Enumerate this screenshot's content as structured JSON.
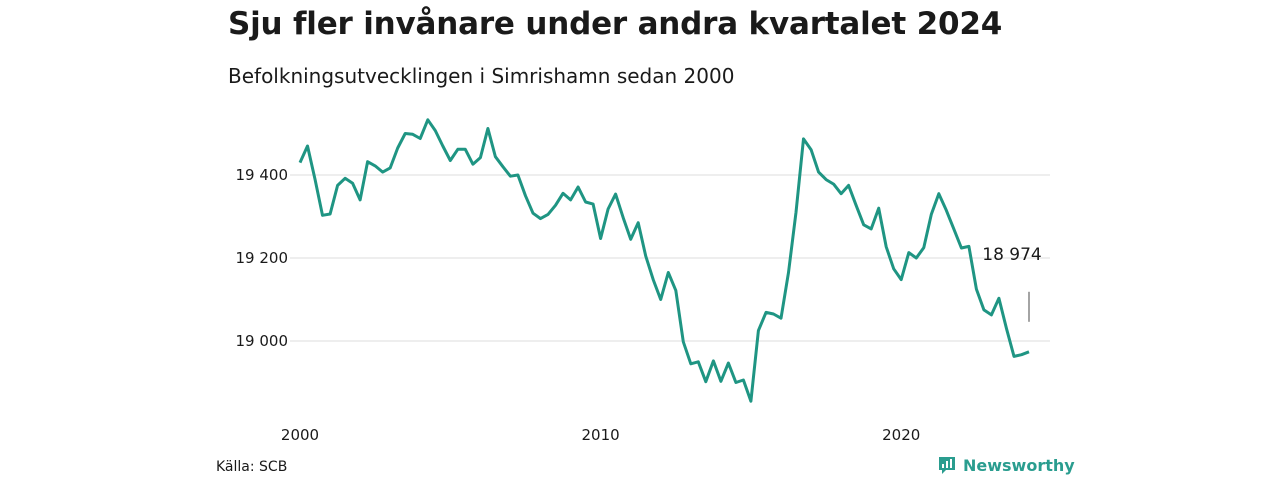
{
  "title": "Sju fler invånare under andra kvartalet 2024",
  "subtitle": "Befolkningsutvecklingen i Simrishamn sedan 2000",
  "source": "Källa: SCB",
  "brand": {
    "name": "Newsworthy",
    "icon": "newsworthy-logo-icon",
    "color": "#2a9d8f"
  },
  "chart_data": {
    "type": "line",
    "title": "Sju fler invånare under andra kvartalet 2024",
    "subtitle": "Befolkningsutvecklingen i Simrishamn sedan 2000",
    "xlabel": "",
    "ylabel": "",
    "line_color": "#1f9583",
    "grid": true,
    "xlim": [
      2000,
      2024.25
    ],
    "ylim": [
      18850,
      19550
    ],
    "x_ticks": [
      2000,
      2010,
      2020
    ],
    "x_tick_labels": [
      "2000",
      "2010",
      "2020"
    ],
    "y_ticks": [
      19000,
      19200,
      19400
    ],
    "y_tick_labels": [
      "19 000",
      "19 200",
      "19 400"
    ],
    "end_label": "18 974",
    "series": [
      {
        "x": [
          2000.0,
          2000.25,
          2000.5,
          2000.75,
          2001.0,
          2001.25,
          2001.5,
          2001.75,
          2002.0,
          2002.25,
          2002.5,
          2002.75,
          2003.0,
          2003.25,
          2003.5,
          2003.75,
          2004.0,
          2004.25,
          2004.5,
          2004.75,
          2005.0,
          2005.25,
          2005.5,
          2005.75,
          2006.0,
          2006.25,
          2006.5,
          2006.75,
          2007.0,
          2007.25,
          2007.5,
          2007.75,
          2008.0,
          2008.25,
          2008.5,
          2008.75,
          2009.0,
          2009.25,
          2009.5,
          2009.75,
          2010.0,
          2010.25,
          2010.5,
          2010.75,
          2011.0,
          2011.25,
          2011.5,
          2011.75,
          2012.0,
          2012.25,
          2012.5,
          2012.75,
          2013.0,
          2013.25,
          2013.5,
          2013.75,
          2014.0,
          2014.25,
          2014.5,
          2014.75,
          2015.0,
          2015.25,
          2015.5,
          2015.75,
          2016.0,
          2016.25,
          2016.5,
          2016.75,
          2017.0,
          2017.25,
          2017.5,
          2017.75,
          2018.0,
          2018.25,
          2018.5,
          2018.75,
          2019.0,
          2019.25,
          2019.5,
          2019.75,
          2020.0,
          2020.25,
          2020.5,
          2020.75,
          2021.0,
          2021.25,
          2021.5,
          2021.75,
          2022.0,
          2022.25,
          2022.5,
          2022.75,
          2023.0,
          2023.25,
          2023.5,
          2023.75,
          2024.0,
          2024.25
        ],
        "values": [
          19430,
          19470,
          19390,
          19303,
          19306,
          19375,
          19392,
          19380,
          19340,
          19432,
          19422,
          19407,
          19417,
          19465,
          19500,
          19498,
          19488,
          19533,
          19507,
          19470,
          19435,
          19462,
          19462,
          19426,
          19442,
          19512,
          19444,
          19420,
          19397,
          19400,
          19350,
          19308,
          19295,
          19305,
          19327,
          19356,
          19340,
          19371,
          19335,
          19330,
          19247,
          19318,
          19354,
          19297,
          19245,
          19285,
          19205,
          19148,
          19100,
          19165,
          19122,
          18998,
          18945,
          18950,
          18902,
          18952,
          18903,
          18947,
          18900,
          18906,
          18855,
          19025,
          19069,
          19065,
          19055,
          19165,
          19310,
          19487,
          19461,
          19407,
          19389,
          19378,
          19355,
          19375,
          19327,
          19280,
          19270,
          19320,
          19227,
          19174,
          19148,
          19213,
          19200,
          19225,
          19305,
          19355,
          19315,
          19270,
          19224,
          19228,
          19125,
          19075,
          19063,
          19103,
          19030,
          18963,
          18967,
          18974
        ]
      }
    ]
  }
}
